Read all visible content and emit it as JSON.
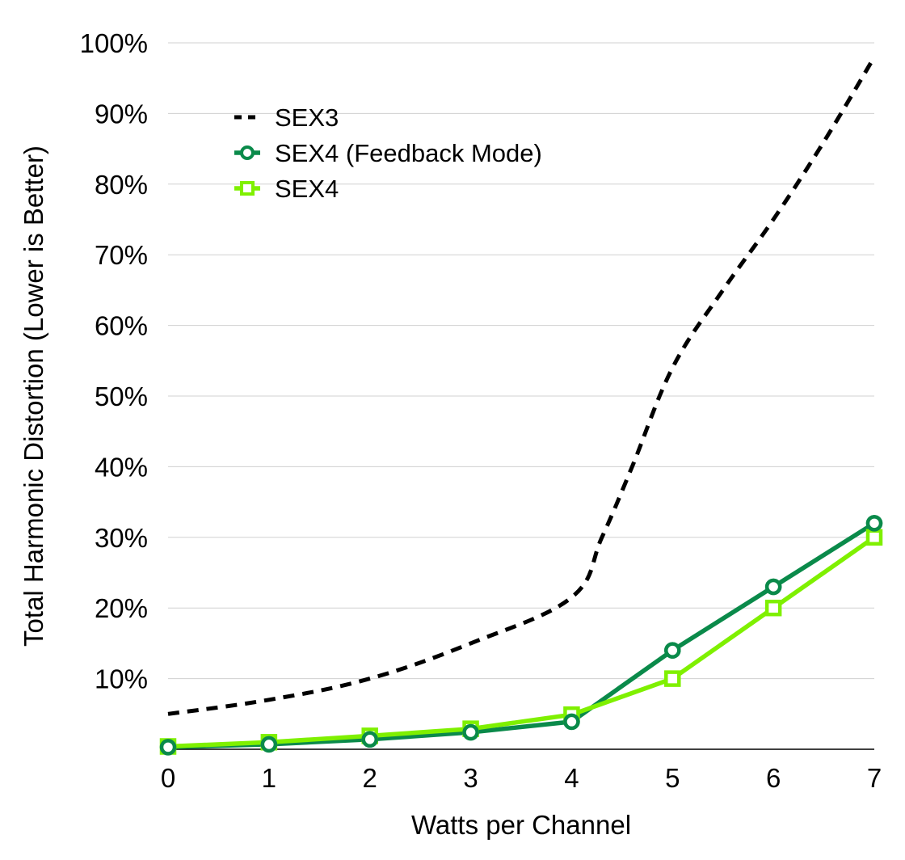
{
  "chart_data": {
    "type": "line",
    "title": "",
    "xlabel": "Watts per Channel",
    "ylabel": "Total Harmonic Distortion (Lower is Better)",
    "xlim": [
      0,
      7
    ],
    "ylim": [
      0,
      100
    ],
    "x_ticks": [
      "0",
      "1",
      "2",
      "3",
      "4",
      "5",
      "6",
      "7"
    ],
    "y_ticks": [
      {
        "value": 10,
        "label": "10%"
      },
      {
        "value": 20,
        "label": "20%"
      },
      {
        "value": 30,
        "label": "30%"
      },
      {
        "value": 40,
        "label": "40%"
      },
      {
        "value": 50,
        "label": "50%"
      },
      {
        "value": 60,
        "label": "60%"
      },
      {
        "value": 70,
        "label": "70%"
      },
      {
        "value": 80,
        "label": "80%"
      },
      {
        "value": 90,
        "label": "90%"
      },
      {
        "value": 100,
        "label": "100%"
      }
    ],
    "grid": "horizontal",
    "legend_position": "top-left",
    "series": [
      {
        "name": "SEX3",
        "color": "#000000",
        "style": "dashed",
        "marker": "none",
        "x": [
          0,
          1,
          2,
          3,
          4,
          4.3,
          4.6,
          5,
          5.5,
          6,
          6.5,
          7
        ],
        "y": [
          5,
          7,
          10,
          15,
          21.5,
          30,
          40,
          54,
          65,
          75,
          86,
          98
        ]
      },
      {
        "name": "SEX4 (Feedback Mode)",
        "color": "#0a8a4a",
        "style": "solid",
        "marker": "circle",
        "x": [
          0,
          1,
          2,
          3,
          4,
          5,
          6,
          7
        ],
        "y": [
          0.3,
          0.7,
          1.4,
          2.4,
          3.9,
          14,
          23,
          32
        ]
      },
      {
        "name": "SEX4",
        "color": "#7ff000",
        "style": "solid",
        "marker": "square",
        "x": [
          0,
          1,
          2,
          3,
          4,
          5,
          6,
          7
        ],
        "y": [
          0.4,
          1.0,
          1.9,
          2.9,
          4.9,
          10,
          20,
          30
        ]
      }
    ]
  }
}
